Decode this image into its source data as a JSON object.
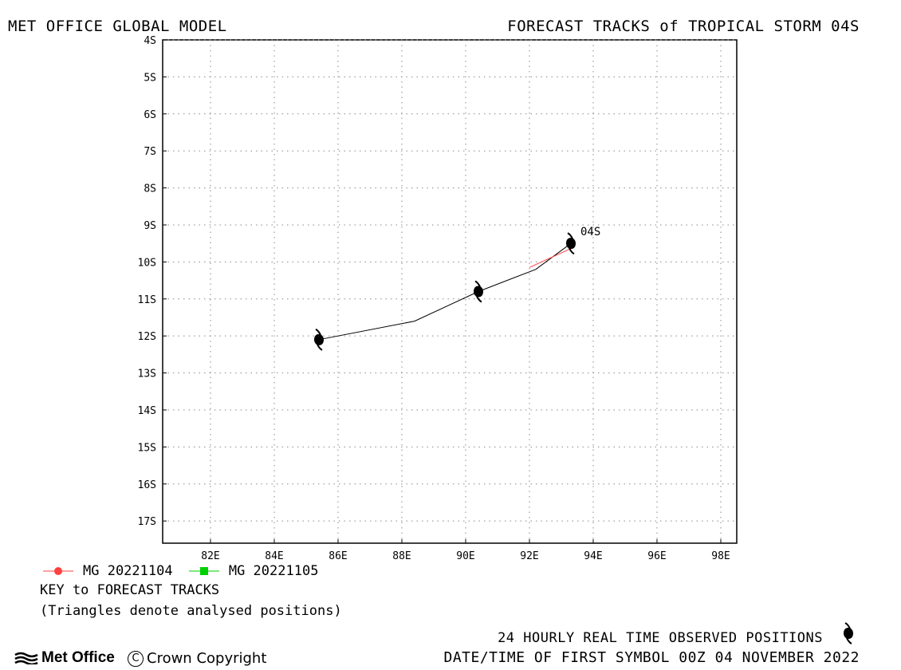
{
  "header": {
    "left_title": "MET OFFICE GLOBAL MODEL",
    "right_title": "FORECAST TRACKS of TROPICAL STORM 04S"
  },
  "map": {
    "lon_range": [
      80.5,
      98.5
    ],
    "lat_range": [
      -4,
      -17.6
    ],
    "lon_ticks": [
      82,
      84,
      86,
      88,
      90,
      92,
      94,
      96,
      98
    ],
    "lon_tick_labels": [
      "82E",
      "84E",
      "86E",
      "88E",
      "90E",
      "92E",
      "94E",
      "96E",
      "98E"
    ],
    "lat_ticks": [
      -4,
      -5,
      -6,
      -7,
      -8,
      -9,
      -10,
      -11,
      -12,
      -13,
      -14,
      -15,
      -16,
      -17
    ],
    "lat_tick_labels": [
      "4S",
      "5S",
      "6S",
      "7S",
      "8S",
      "9S",
      "10S",
      "11S",
      "12S",
      "13S",
      "14S",
      "15S",
      "16S",
      "17S"
    ],
    "grid": true,
    "storm_label": "04S"
  },
  "chart_data": {
    "type": "map-track",
    "title": "FORECAST TRACKS of TROPICAL STORM 04S",
    "observed_track": {
      "lon": [
        85.4,
        88.4,
        90.4,
        92.2,
        93.3
      ],
      "lat": [
        -12.1,
        -11.6,
        -10.8,
        -10.2,
        -9.5
      ]
    },
    "observed_positions": [
      {
        "lon": 93.3,
        "lat": -9.5
      },
      {
        "lon": 90.4,
        "lat": -10.8
      },
      {
        "lon": 85.4,
        "lat": -12.1
      }
    ],
    "forecast_tracks": [
      {
        "name": "MG 20221104",
        "color": "#ff4040",
        "lon": [
          92.0,
          93.4
        ],
        "lat": [
          -10.15,
          -9.6
        ]
      },
      {
        "name": "MG 20221105",
        "color": "#00d000",
        "lon": [],
        "lat": []
      }
    ]
  },
  "legend": {
    "items": [
      {
        "label": "MG 20221104",
        "color": "#ff4040",
        "marker": "circle"
      },
      {
        "label": "MG 20221105",
        "color": "#00d000",
        "marker": "square"
      }
    ],
    "key_title": "KEY to FORECAST TRACKS",
    "key_note": "(Triangles denote analysed positions)"
  },
  "footer": {
    "observed_note": "24 HOURLY REAL TIME OBSERVED POSITIONS",
    "first_symbol": "DATE/TIME OF FIRST SYMBOL 00Z 04 NOVEMBER 2022",
    "logo_text": "Met Office",
    "copyright": "Crown Copyright"
  }
}
